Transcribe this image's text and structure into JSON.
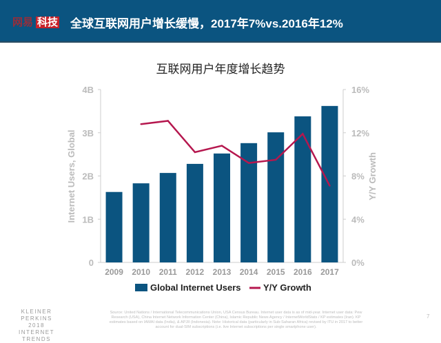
{
  "header": {
    "logo_part1": "网易",
    "logo_part2": "科技",
    "title": "全球互联网用户增长缓慢，2017年7%vs.2016年12%"
  },
  "chart_data": {
    "type": "bar+line",
    "title": "互联网用户年度增长趋势",
    "categories": [
      "2009",
      "2010",
      "2011",
      "2012",
      "2013",
      "2014",
      "2015",
      "2016",
      "2017"
    ],
    "series": [
      {
        "name": "Global Internet Users",
        "type": "bar",
        "axis": "left",
        "color": "#0b5480",
        "values": [
          1.63,
          1.83,
          2.07,
          2.28,
          2.52,
          2.76,
          3.01,
          3.38,
          3.62
        ]
      },
      {
        "name": "Y/Y Growth",
        "type": "line",
        "axis": "right",
        "color": "#b5174e",
        "values": [
          null,
          12.8,
          13.1,
          10.2,
          10.8,
          9.2,
          9.5,
          11.9,
          7.1
        ]
      }
    ],
    "ylabel": "Internet Users, Global",
    "y2label": "Y/Y Growth",
    "ylim": [
      0,
      4
    ],
    "y2lim": [
      0,
      16
    ],
    "yticks": [
      "0",
      "1B",
      "2B",
      "3B",
      "4B"
    ],
    "y2ticks": [
      "0%",
      "4%",
      "8%",
      "12%",
      "16%"
    ],
    "legend": "bottom",
    "grid": false
  },
  "footer": {
    "brand": [
      "KLEINER PERKINS",
      "2018",
      "INTERNET TRENDS"
    ],
    "source": "Source: United Nations / International Telecommunications Union, USA Census Bureau. Internet user data is as of mid-year. Internet user data: Pew Research (USA), China Internet Network Information Center (China), Islamic Republic News Agency / InternetWorldStats / KP estimates (Iran). KP estimates based on IAMAI data (India), & APJII (Indonesia). Note: Historical data (particularly in Sub-Saharan Africa) revised by ITU in 2017 to better account for dual-SIM subscriptions (i.e. live Internet subscriptions per single smartphone user).",
    "page": "7"
  }
}
